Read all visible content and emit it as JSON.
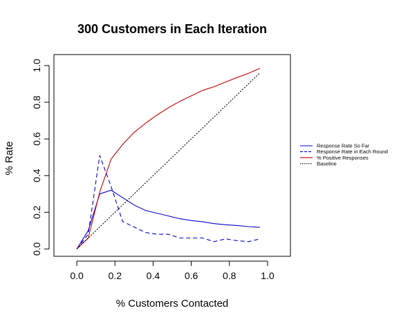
{
  "chart_data": {
    "type": "line",
    "title": "300 Customers in Each Iteration",
    "xlabel": "% Customers Contacted",
    "ylabel": "% Rate",
    "xlim": [
      -0.12,
      1.12
    ],
    "ylim": [
      -0.04,
      1.06
    ],
    "xticks": [
      0.0,
      0.2,
      0.4,
      0.6,
      0.8,
      1.0
    ],
    "xtick_labels": [
      "0.0",
      "0.2",
      "0.4",
      "0.6",
      "0.8",
      "1.0"
    ],
    "yticks": [
      0.0,
      0.2,
      0.4,
      0.6,
      0.8,
      1.0
    ],
    "ytick_labels": [
      "0.0",
      "0.2",
      "0.4",
      "0.6",
      "0.8",
      "1.0"
    ],
    "grid": false,
    "legend_position": "right",
    "series": [
      {
        "name": "Response Rate So Far",
        "color": "#0000cd",
        "dash": "solid",
        "x": [
          0.0,
          0.06,
          0.12,
          0.18,
          0.24,
          0.3,
          0.36,
          0.42,
          0.48,
          0.54,
          0.6,
          0.66,
          0.72,
          0.78,
          0.84,
          0.9,
          0.96
        ],
        "y": [
          0.0,
          0.1,
          0.3,
          0.32,
          0.28,
          0.24,
          0.21,
          0.195,
          0.18,
          0.165,
          0.155,
          0.148,
          0.138,
          0.132,
          0.128,
          0.122,
          0.118
        ]
      },
      {
        "name": "Response Rate in Each Round",
        "color": "#0000cd",
        "dash": "dashed",
        "x": [
          0.0,
          0.06,
          0.12,
          0.18,
          0.24,
          0.3,
          0.36,
          0.42,
          0.48,
          0.54,
          0.6,
          0.66,
          0.72,
          0.78,
          0.84,
          0.9,
          0.96
        ],
        "y": [
          0.0,
          0.08,
          0.51,
          0.34,
          0.15,
          0.12,
          0.09,
          0.08,
          0.08,
          0.06,
          0.06,
          0.06,
          0.04,
          0.055,
          0.045,
          0.04,
          0.055
        ]
      },
      {
        "name": "% Positive Responses",
        "color": "#cc0000",
        "dash": "solid",
        "x": [
          0.0,
          0.06,
          0.12,
          0.18,
          0.24,
          0.3,
          0.36,
          0.42,
          0.48,
          0.54,
          0.6,
          0.66,
          0.72,
          0.78,
          0.84,
          0.9,
          0.96
        ],
        "y": [
          0.0,
          0.06,
          0.31,
          0.49,
          0.57,
          0.635,
          0.685,
          0.73,
          0.77,
          0.805,
          0.835,
          0.865,
          0.885,
          0.91,
          0.935,
          0.958,
          0.985
        ]
      },
      {
        "name": "Baseline",
        "color": "#000000",
        "dash": "dotted",
        "x": [
          0.0,
          0.96
        ],
        "y": [
          0.0,
          0.96
        ]
      }
    ]
  }
}
